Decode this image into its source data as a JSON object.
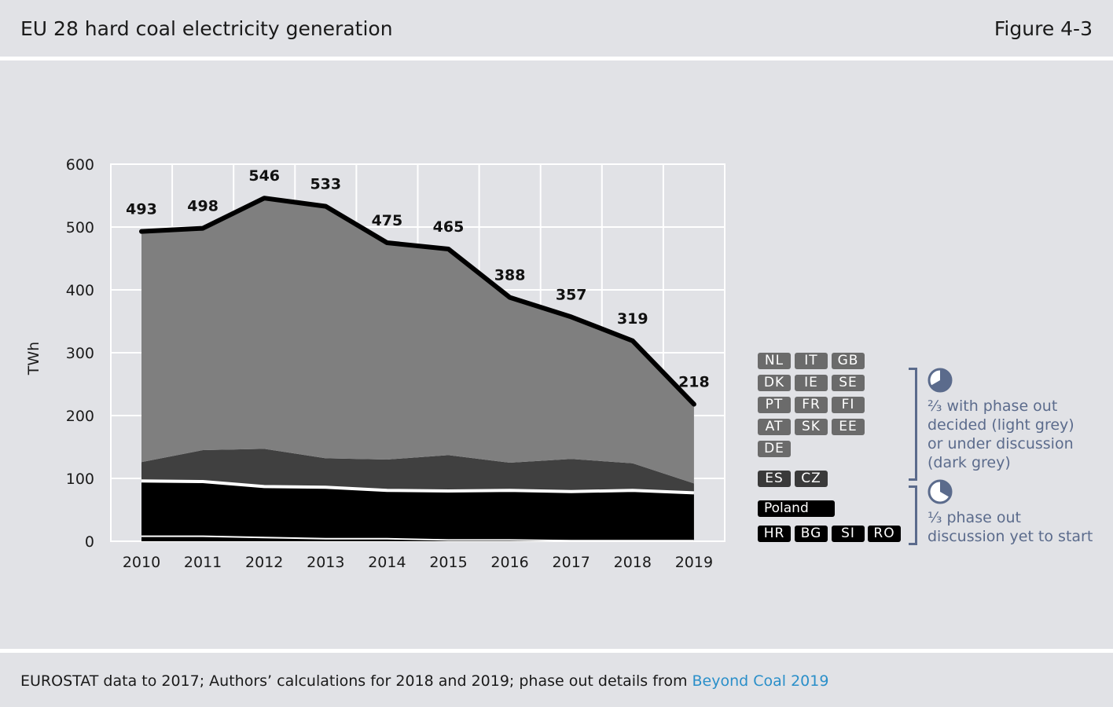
{
  "header": {
    "title": "EU 28 hard coal electricity generation",
    "figure": "Figure 4-3"
  },
  "footer": {
    "source_text": "EUROSTAT data to 2017; Authors’ calculations for 2018 and 2019; phase out details from ",
    "source_link": "Beyond Coal 2019"
  },
  "chart_data": {
    "type": "area",
    "ylabel": "TWh",
    "ylim": [
      0,
      600
    ],
    "yticks": [
      0,
      100,
      200,
      300,
      400,
      500,
      600
    ],
    "x": [
      "2010",
      "2011",
      "2012",
      "2013",
      "2014",
      "2015",
      "2016",
      "2017",
      "2018",
      "2019"
    ],
    "total_labels": [
      "493",
      "498",
      "546",
      "533",
      "475",
      "465",
      "388",
      "357",
      "319",
      "218"
    ],
    "grid": true,
    "series": [
      {
        "name": "",
        "color": "#000000",
        "values": [
          8,
          8,
          6,
          4,
          4,
          2,
          2,
          1,
          1,
          1
        ]
      },
      {
        "name": "Poland",
        "color": "#000000",
        "values": [
          88,
          87,
          81,
          82,
          77,
          78,
          79,
          78,
          80,
          76
        ]
      },
      {
        "name": "",
        "color": "#404040",
        "values": [
          30,
          50,
          60,
          46,
          49,
          57,
          44,
          52,
          43,
          15
        ]
      },
      {
        "name": "",
        "color": "#7f7f7f",
        "values": [
          367,
          353,
          399,
          401,
          345,
          328,
          263,
          226,
          195,
          126
        ]
      }
    ],
    "total": [
      493,
      498,
      546,
      533,
      475,
      465,
      388,
      357,
      319,
      218
    ]
  },
  "legend": {
    "group_a_rows": [
      [
        "NL",
        "IT",
        "GB"
      ],
      [
        "DK",
        "IE",
        "SE"
      ],
      [
        "PT",
        "FR",
        "FI"
      ],
      [
        "AT",
        "SK",
        "EE"
      ],
      [
        "DE"
      ]
    ],
    "group_a_dark": [
      "ES",
      "CZ"
    ],
    "group_b_poland": "Poland",
    "group_b_rest": [
      "HR",
      "BG",
      "SI",
      "RO"
    ],
    "group_a_text": [
      "⅔ with phase out",
      "decided (light grey)",
      "or under discussion",
      "(dark grey)"
    ],
    "group_b_text": [
      "⅓ phase out",
      "discussion yet to start"
    ],
    "accent_color": "#5b6b8c"
  }
}
